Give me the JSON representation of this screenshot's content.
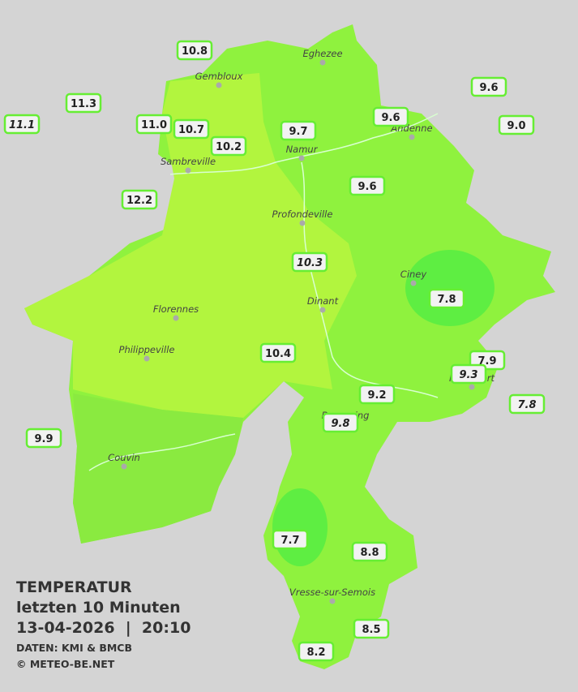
{
  "title": {
    "lines": [
      "TEMPERATUR",
      "letzten 10 Minuten",
      "13-04-2026  |  20:10"
    ],
    "source": "DATEN: KMI & BMCB",
    "copyright": "© METEO-BE.NET"
  },
  "cities": [
    "Eghezee",
    "Gembloux",
    "Andenne",
    "Namur",
    "Sambreville",
    "Profondeville",
    "Ciney",
    "Dinant",
    "Florennes",
    "Philippeville",
    "Rochefort",
    "Beauraing",
    "Couvin",
    "Vresse-sur-Semois"
  ],
  "stations": [
    {
      "label": "10.8"
    },
    {
      "label": "11.3"
    },
    {
      "label": "11.1",
      "italic": true
    },
    {
      "label": "11.0"
    },
    {
      "label": "10.7"
    },
    {
      "label": "10.2"
    },
    {
      "label": "9.7"
    },
    {
      "label": "9.6"
    },
    {
      "label": "9.6"
    },
    {
      "label": "9.0"
    },
    {
      "label": "12.2"
    },
    {
      "label": "9.6"
    },
    {
      "label": "10.3",
      "italic": true
    },
    {
      "label": "7.8"
    },
    {
      "label": "10.4"
    },
    {
      "label": "7.9"
    },
    {
      "label": "9.3",
      "italic": true
    },
    {
      "label": "7.8",
      "italic": true
    },
    {
      "label": "9.2"
    },
    {
      "label": "9.8",
      "italic": true
    },
    {
      "label": "9.9"
    },
    {
      "label": "7.7"
    },
    {
      "label": "8.8"
    },
    {
      "label": "8.5"
    },
    {
      "label": "8.2"
    }
  ]
}
